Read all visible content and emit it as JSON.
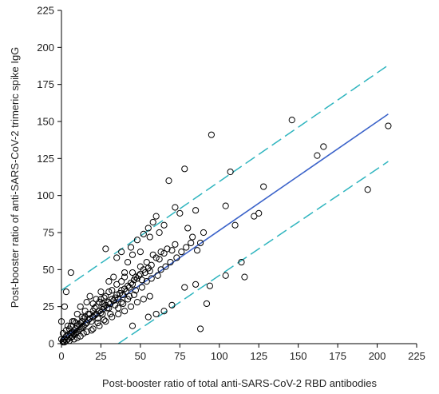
{
  "chart_data": {
    "type": "scatter",
    "title": "",
    "xlabel": "Post-booster ratio of total anti-SARS-CoV-2 RBD antibodies",
    "ylabel": "Post-booster ratio of anti-SARS-CoV-2 trimeric spike IgG",
    "xlim": [
      0,
      225
    ],
    "ylim": [
      0,
      225
    ],
    "x_ticks": [
      "0",
      "25",
      "50",
      "75",
      "100",
      "125",
      "150",
      "175",
      "200",
      "225"
    ],
    "y_ticks": [
      "0",
      "25",
      "50",
      "75",
      "100",
      "125",
      "150",
      "175",
      "200",
      "225"
    ],
    "grid": false,
    "legend": "none",
    "colors": {
      "points": "#000000",
      "fit": "#3a62c9",
      "band": "#2fb5bf"
    },
    "fit_line": {
      "x": [
        0,
        207
      ],
      "y": [
        3,
        155
      ]
    },
    "upper_band": {
      "x": [
        0,
        207
      ],
      "y": [
        36,
        188
      ]
    },
    "lower_band": {
      "x": [
        36,
        207
      ],
      "y": [
        0,
        123
      ]
    },
    "points": [
      [
        1,
        1
      ],
      [
        1,
        2
      ],
      [
        2,
        1
      ],
      [
        2,
        3
      ],
      [
        3,
        2
      ],
      [
        3,
        5
      ],
      [
        4,
        3
      ],
      [
        4,
        6
      ],
      [
        5,
        2
      ],
      [
        5,
        5
      ],
      [
        6,
        4
      ],
      [
        6,
        7
      ],
      [
        7,
        5
      ],
      [
        7,
        8
      ],
      [
        8,
        6
      ],
      [
        8,
        9
      ],
      [
        9,
        7
      ],
      [
        9,
        10
      ],
      [
        10,
        8
      ],
      [
        10,
        12
      ],
      [
        11,
        9
      ],
      [
        11,
        13
      ],
      [
        12,
        10
      ],
      [
        12,
        14
      ],
      [
        13,
        11
      ],
      [
        13,
        15
      ],
      [
        14,
        12
      ],
      [
        14,
        17
      ],
      [
        15,
        13
      ],
      [
        15,
        18
      ],
      [
        16,
        14
      ],
      [
        17,
        16
      ],
      [
        18,
        17
      ],
      [
        18,
        20
      ],
      [
        19,
        15
      ],
      [
        20,
        18
      ],
      [
        20,
        22
      ],
      [
        21,
        19
      ],
      [
        22,
        20
      ],
      [
        22,
        25
      ],
      [
        23,
        17
      ],
      [
        24,
        22
      ],
      [
        24,
        28
      ],
      [
        25,
        21
      ],
      [
        25,
        30
      ],
      [
        26,
        23
      ],
      [
        26,
        27
      ],
      [
        27,
        25
      ],
      [
        28,
        26
      ],
      [
        28,
        32
      ],
      [
        29,
        24
      ],
      [
        30,
        28
      ],
      [
        30,
        35
      ],
      [
        31,
        27
      ],
      [
        32,
        30
      ],
      [
        32,
        36
      ],
      [
        33,
        29
      ],
      [
        34,
        31
      ],
      [
        35,
        33
      ],
      [
        35,
        40
      ],
      [
        36,
        30
      ],
      [
        37,
        34
      ],
      [
        38,
        36
      ],
      [
        38,
        42
      ],
      [
        39,
        33
      ],
      [
        40,
        37
      ],
      [
        40,
        45
      ],
      [
        41,
        35
      ],
      [
        42,
        39
      ],
      [
        43,
        38
      ],
      [
        44,
        41
      ],
      [
        45,
        40
      ],
      [
        45,
        48
      ],
      [
        46,
        43
      ],
      [
        47,
        45
      ],
      [
        48,
        44
      ],
      [
        49,
        46
      ],
      [
        50,
        47
      ],
      [
        50,
        52
      ],
      [
        51,
        43
      ],
      [
        52,
        50
      ],
      [
        53,
        48
      ],
      [
        54,
        55
      ],
      [
        55,
        51
      ],
      [
        56,
        49
      ],
      [
        57,
        53
      ],
      [
        58,
        60
      ],
      [
        60,
        58
      ],
      [
        62,
        57
      ],
      [
        63,
        62
      ],
      [
        65,
        61
      ],
      [
        67,
        64
      ],
      [
        70,
        63
      ],
      [
        72,
        67
      ],
      [
        0,
        15
      ],
      [
        2,
        25
      ],
      [
        3,
        35
      ],
      [
        6,
        48
      ],
      [
        8,
        15
      ],
      [
        10,
        20
      ],
      [
        12,
        25
      ],
      [
        15,
        22
      ],
      [
        16,
        28
      ],
      [
        18,
        32
      ],
      [
        20,
        27
      ],
      [
        22,
        30
      ],
      [
        25,
        35
      ],
      [
        27,
        31
      ],
      [
        28,
        64
      ],
      [
        30,
        42
      ],
      [
        33,
        45
      ],
      [
        35,
        58
      ],
      [
        38,
        62
      ],
      [
        40,
        48
      ],
      [
        42,
        55
      ],
      [
        44,
        65
      ],
      [
        45,
        60
      ],
      [
        48,
        70
      ],
      [
        50,
        62
      ],
      [
        52,
        74
      ],
      [
        55,
        78
      ],
      [
        56,
        72
      ],
      [
        58,
        82
      ],
      [
        60,
        86
      ],
      [
        62,
        75
      ],
      [
        65,
        80
      ],
      [
        68,
        110
      ],
      [
        72,
        92
      ],
      [
        75,
        88
      ],
      [
        78,
        118
      ],
      [
        80,
        78
      ],
      [
        83,
        72
      ],
      [
        85,
        90
      ],
      [
        88,
        68
      ],
      [
        95,
        141
      ],
      [
        107,
        116
      ],
      [
        104,
        93
      ],
      [
        110,
        80
      ],
      [
        122,
        86
      ],
      [
        125,
        88
      ],
      [
        128,
        106
      ],
      [
        146,
        151
      ],
      [
        162,
        127
      ],
      [
        166,
        133
      ],
      [
        194,
        104
      ],
      [
        207,
        147
      ],
      [
        45,
        12
      ],
      [
        55,
        18
      ],
      [
        60,
        20
      ],
      [
        65,
        22
      ],
      [
        70,
        26
      ],
      [
        78,
        38
      ],
      [
        85,
        40
      ],
      [
        88,
        10
      ],
      [
        92,
        27
      ],
      [
        94,
        39
      ],
      [
        104,
        46
      ],
      [
        114,
        55
      ],
      [
        116,
        45
      ],
      [
        8,
        3
      ],
      [
        12,
        5
      ],
      [
        16,
        8
      ],
      [
        20,
        10
      ],
      [
        24,
        12
      ],
      [
        28,
        15
      ],
      [
        32,
        18
      ],
      [
        36,
        20
      ],
      [
        40,
        22
      ],
      [
        44,
        25
      ],
      [
        48,
        28
      ],
      [
        52,
        30
      ],
      [
        56,
        32
      ],
      [
        5,
        10
      ],
      [
        9,
        14
      ],
      [
        13,
        18
      ],
      [
        17,
        20
      ],
      [
        21,
        24
      ],
      [
        26,
        20
      ],
      [
        30,
        24
      ],
      [
        34,
        26
      ],
      [
        38,
        28
      ],
      [
        42,
        30
      ],
      [
        46,
        33
      ],
      [
        0,
        3
      ],
      [
        1,
        7
      ],
      [
        3,
        9
      ],
      [
        4,
        12
      ],
      [
        6,
        12
      ],
      [
        7,
        15
      ],
      [
        10,
        4
      ],
      [
        14,
        7
      ],
      [
        19,
        9
      ],
      [
        23,
        14
      ],
      [
        27,
        16
      ],
      [
        31,
        20
      ],
      [
        36,
        24
      ],
      [
        39,
        27
      ],
      [
        43,
        32
      ],
      [
        47,
        36
      ],
      [
        51,
        38
      ],
      [
        54,
        42
      ],
      [
        57,
        44
      ],
      [
        61,
        46
      ],
      [
        63,
        50
      ],
      [
        66,
        52
      ],
      [
        69,
        55
      ],
      [
        73,
        58
      ],
      [
        76,
        62
      ],
      [
        79,
        65
      ],
      [
        82,
        68
      ],
      [
        86,
        63
      ],
      [
        90,
        75
      ]
    ]
  }
}
